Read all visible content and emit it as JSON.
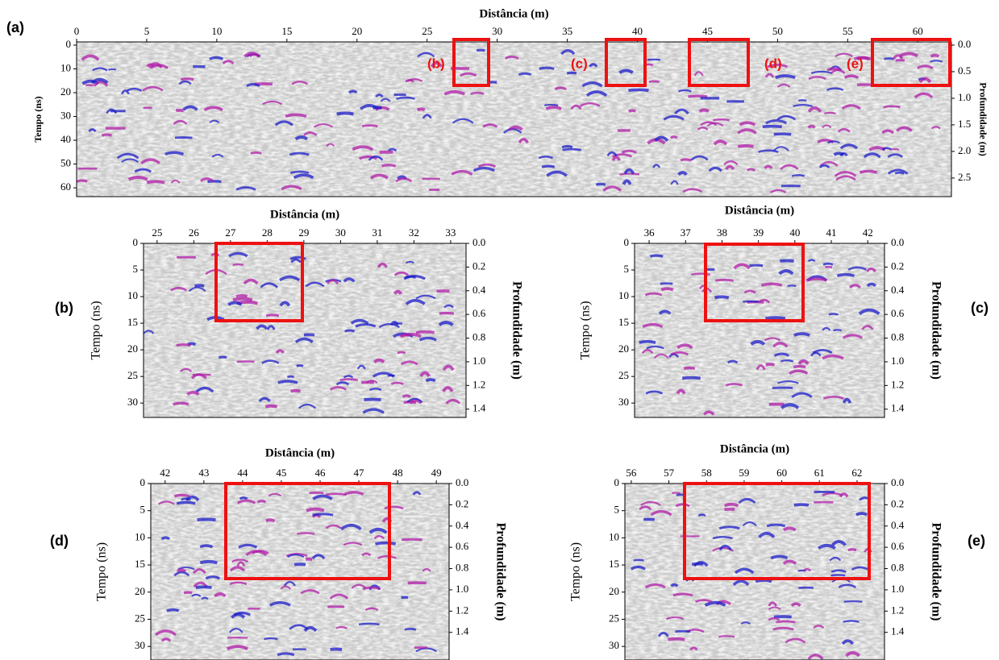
{
  "chart_data": [
    {
      "type": "radargram",
      "panel_label": "(a)",
      "x_label": "Distância (m)",
      "y_label": "Tempo (ns)",
      "y2_label": "Profundidade (m)",
      "xlim": [
        0,
        62.4
      ],
      "ylim": [
        -1.35,
        63.7
      ],
      "y2lim": [
        -0.06,
        2.85
      ],
      "xticks": [
        0,
        5,
        10,
        15,
        20,
        25,
        30,
        35,
        40,
        45,
        50,
        55,
        60
      ],
      "yticks": [
        0,
        10,
        20,
        30,
        40,
        50,
        60
      ],
      "y2ticks": [
        {
          "value": 0,
          "label": "0.0"
        },
        0.5,
        {
          "value": 1,
          "label": "1.0"
        },
        1.5,
        {
          "value": 2,
          "label": "2.0"
        },
        2.5
      ],
      "box_labels": [
        "(b)",
        "(c)",
        "(d)",
        "(e)"
      ]
    },
    {
      "type": "radargram",
      "panel_label": "(b)",
      "x_label": "Distância (m)",
      "y_label": "Tempo (ns)",
      "y2_label": "Profundidade (m)",
      "xlim": [
        24.63,
        33.42
      ],
      "ylim": [
        0,
        32.7
      ],
      "y2lim": [
        0,
        1.47
      ],
      "xticks": [
        25,
        26,
        27,
        28,
        29,
        30,
        31,
        32,
        33
      ],
      "yticks": [
        0,
        5,
        10,
        15,
        20,
        25,
        30
      ],
      "y2ticks": [
        {
          "value": 0,
          "label": "0.0"
        },
        0.2,
        0.4,
        0.6,
        0.8,
        {
          "value": 1,
          "label": "1.0"
        },
        1.2,
        1.4
      ]
    },
    {
      "type": "radargram",
      "panel_label": "(c)",
      "x_label": "Distância (m)",
      "y_label": "Tempo (ns)",
      "y2_label": "Profundidade (m)",
      "xlim": [
        35.6,
        42.46
      ],
      "ylim": [
        0,
        32.7
      ],
      "y2lim": [
        0,
        1.47
      ],
      "xticks": [
        36,
        37,
        38,
        39,
        40,
        41,
        42
      ],
      "yticks": [
        0,
        5,
        10,
        15,
        20,
        25,
        30
      ],
      "y2ticks": [
        {
          "value": 0,
          "label": "0.0"
        },
        0.2,
        0.4,
        0.6,
        0.8,
        {
          "value": 1,
          "label": "1.0"
        },
        1.2,
        1.4
      ]
    },
    {
      "type": "radargram",
      "panel_label": "(d)",
      "x_label": "Distância (m)",
      "y_label": "Tempo (ns)",
      "y2_label": "Profundidade (m)",
      "xlim": [
        41.63,
        49.33
      ],
      "ylim": [
        0,
        32.5
      ],
      "y2lim": [
        0,
        1.66
      ],
      "xticks": [
        42,
        43,
        44,
        45,
        46,
        47,
        48,
        49
      ],
      "yticks": [
        0,
        5,
        10,
        15,
        20,
        25,
        30
      ],
      "y2ticks": [
        {
          "value": 0,
          "label": "0.0"
        },
        0.2,
        0.4,
        0.6,
        0.8,
        {
          "value": 1,
          "label": "1.0"
        },
        1.2,
        1.4
      ]
    },
    {
      "type": "radargram",
      "panel_label": "(e)",
      "x_label": "Distância (m)",
      "y_label": "Tempo (ns)",
      "y2_label": "Profundidade (m)",
      "xlim": [
        55.83,
        62.73
      ],
      "ylim": [
        0,
        32.5
      ],
      "y2lim": [
        0,
        1.66
      ],
      "xticks": [
        56,
        57,
        58,
        59,
        60,
        61,
        62
      ],
      "yticks": [
        0,
        5,
        10,
        15,
        20,
        25,
        30
      ],
      "y2ticks": [
        {
          "value": 0,
          "label": "0.0"
        },
        0.2,
        0.4,
        0.6,
        0.8,
        {
          "value": 1,
          "label": "1.0"
        },
        1.2,
        1.4
      ]
    }
  ]
}
